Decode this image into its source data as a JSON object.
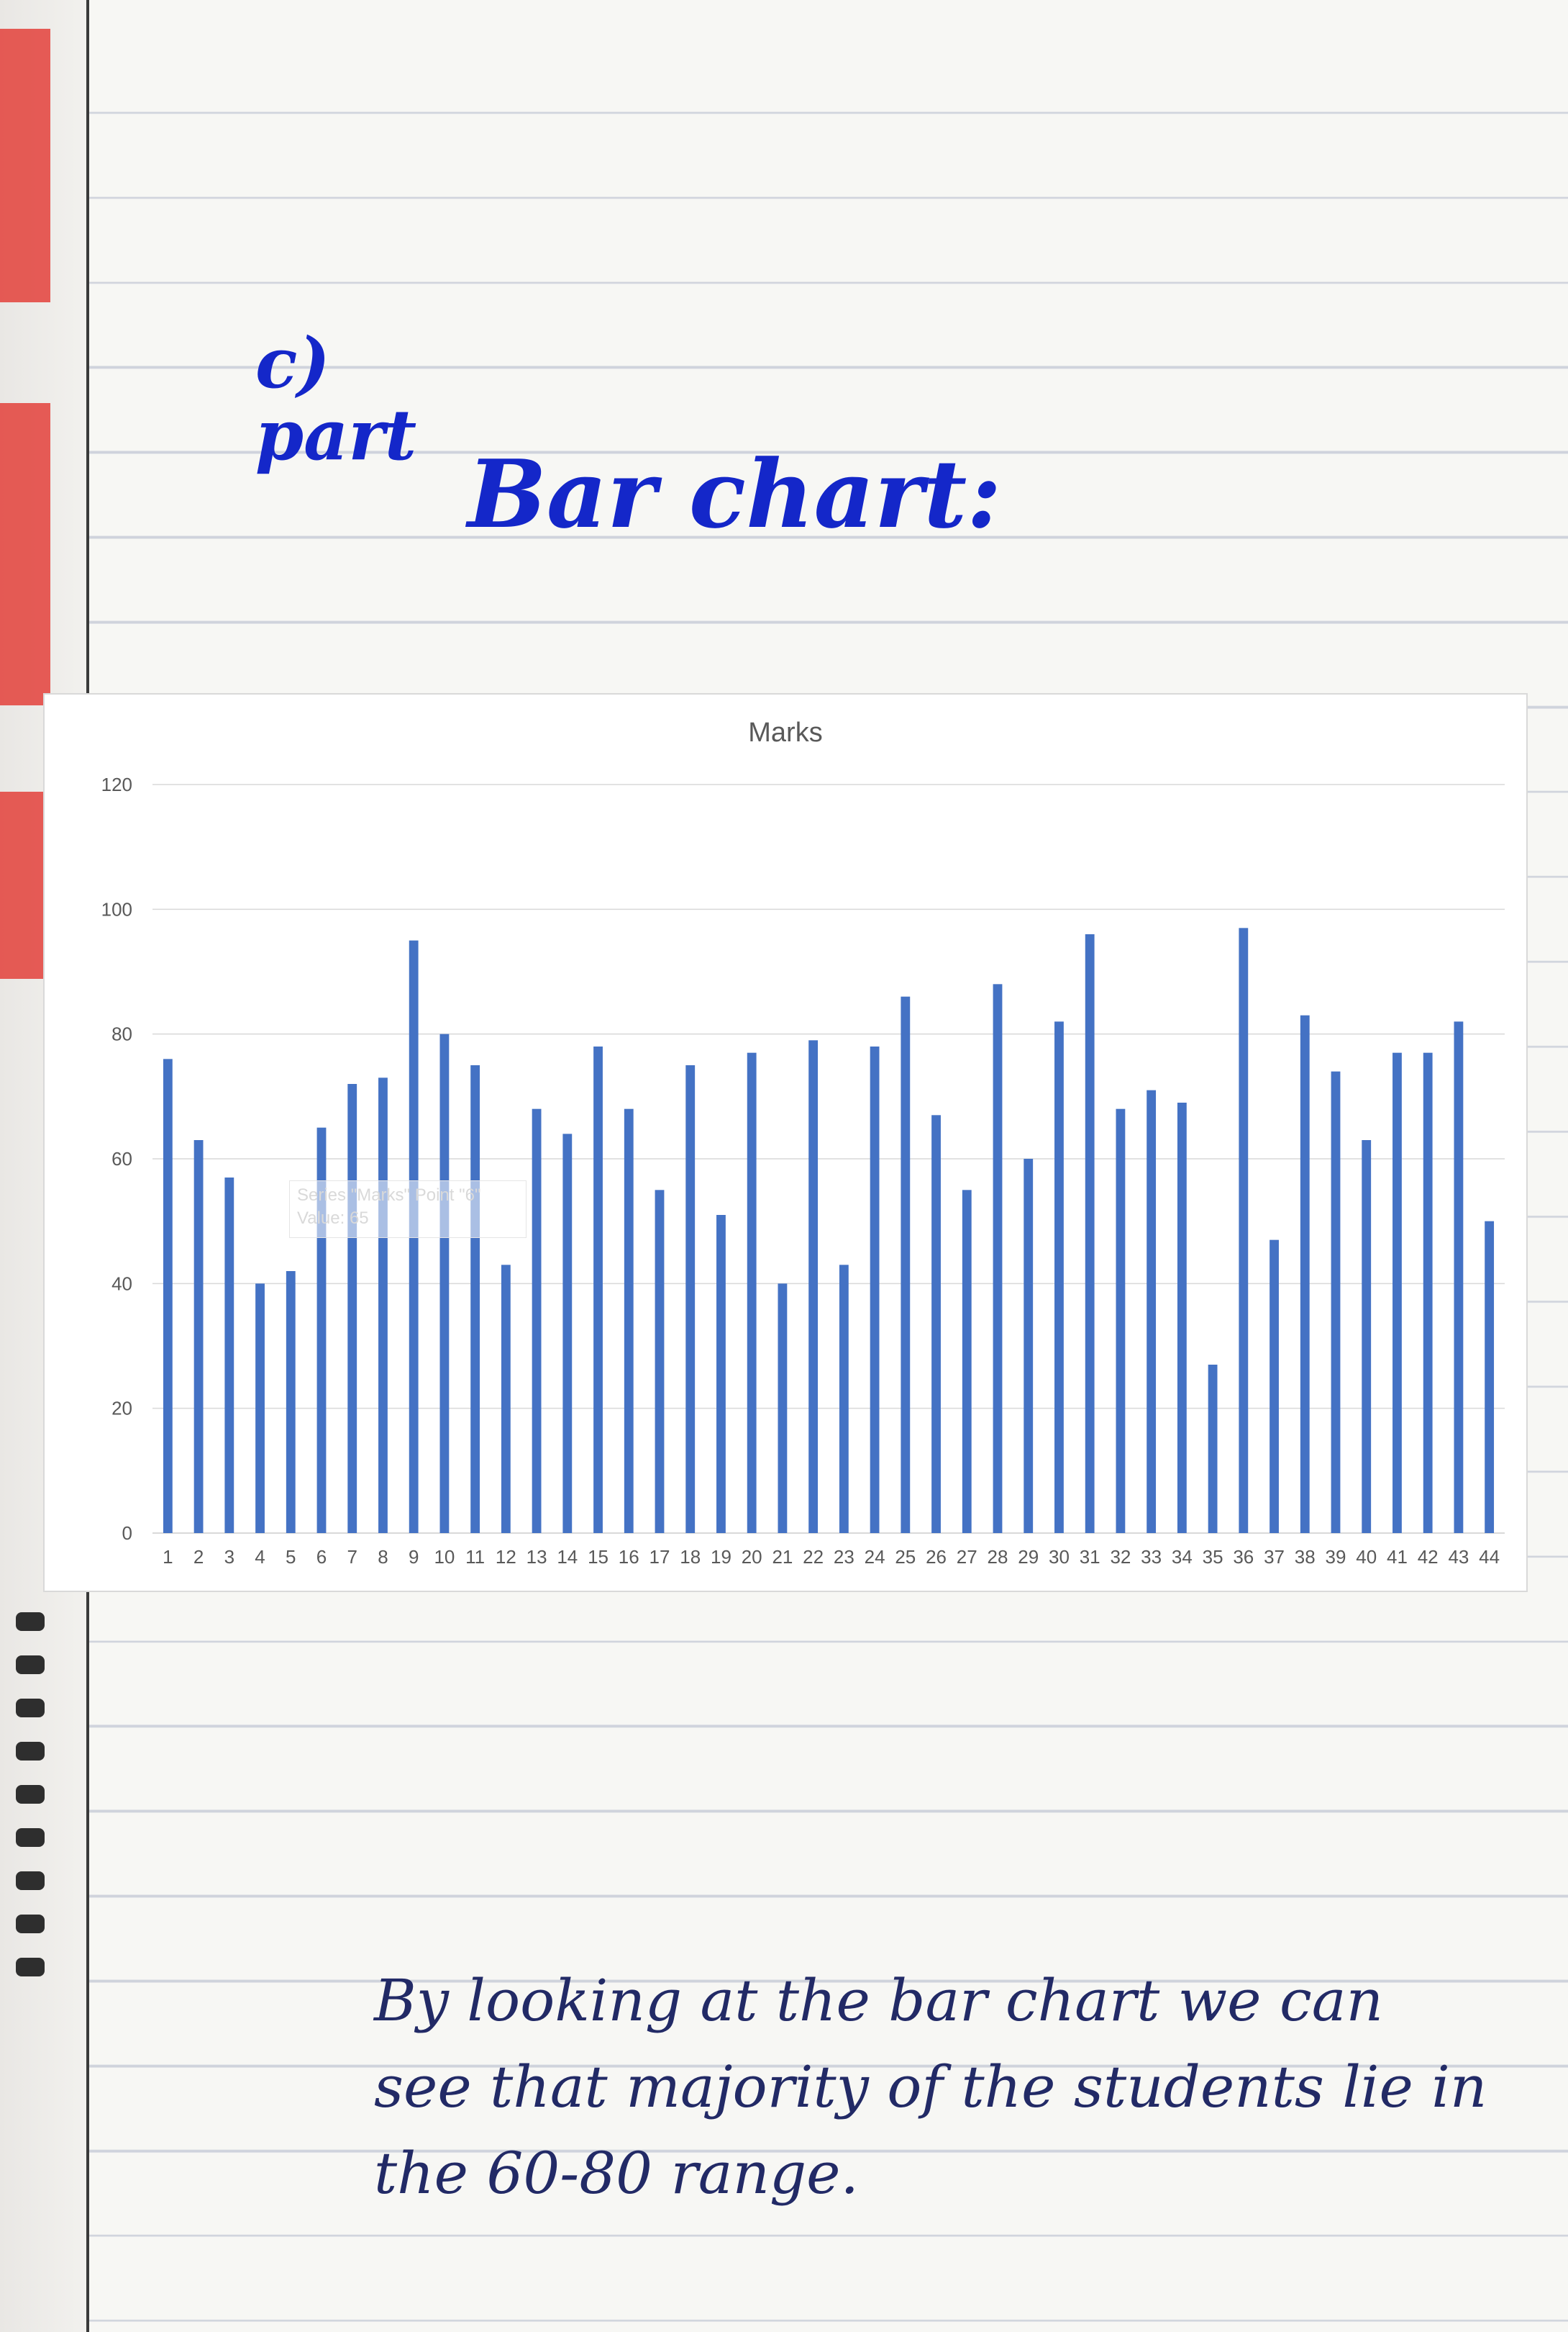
{
  "notes": {
    "part_label": "c)\npart",
    "heading": "Bar chart:",
    "conclusion": "By looking at the bar chart we can see that majority of the students lie in the 60-80 range."
  },
  "tooltip": {
    "line1": "Series \"Marks\" Point \"6\"",
    "line2": "Value: 65"
  },
  "colors": {
    "bar": "#4472c4",
    "handwriting": "#1427c9",
    "gridline": "#d9d9d9"
  },
  "chart_data": {
    "type": "bar",
    "title": "Marks",
    "categories": [
      "1",
      "2",
      "3",
      "4",
      "5",
      "6",
      "7",
      "8",
      "9",
      "10",
      "11",
      "12",
      "13",
      "14",
      "15",
      "16",
      "17",
      "18",
      "19",
      "20",
      "21",
      "22",
      "23",
      "24",
      "25",
      "26",
      "27",
      "28",
      "29",
      "30",
      "31",
      "32",
      "33",
      "34",
      "35",
      "36",
      "37",
      "38",
      "39",
      "40",
      "41",
      "42",
      "43",
      "44"
    ],
    "series": [
      {
        "name": "Marks",
        "values": [
          76,
          63,
          57,
          40,
          42,
          65,
          72,
          73,
          95,
          80,
          75,
          43,
          68,
          64,
          78,
          68,
          55,
          75,
          51,
          77,
          40,
          79,
          43,
          78,
          86,
          67,
          55,
          88,
          60,
          82,
          96,
          68,
          71,
          69,
          27,
          97,
          47,
          83,
          74,
          63,
          77,
          77,
          82,
          50
        ]
      }
    ],
    "ylim": [
      0,
      120
    ],
    "yticks": [
      0,
      20,
      40,
      60,
      80,
      100,
      120
    ],
    "grid": true,
    "legend": "none"
  }
}
